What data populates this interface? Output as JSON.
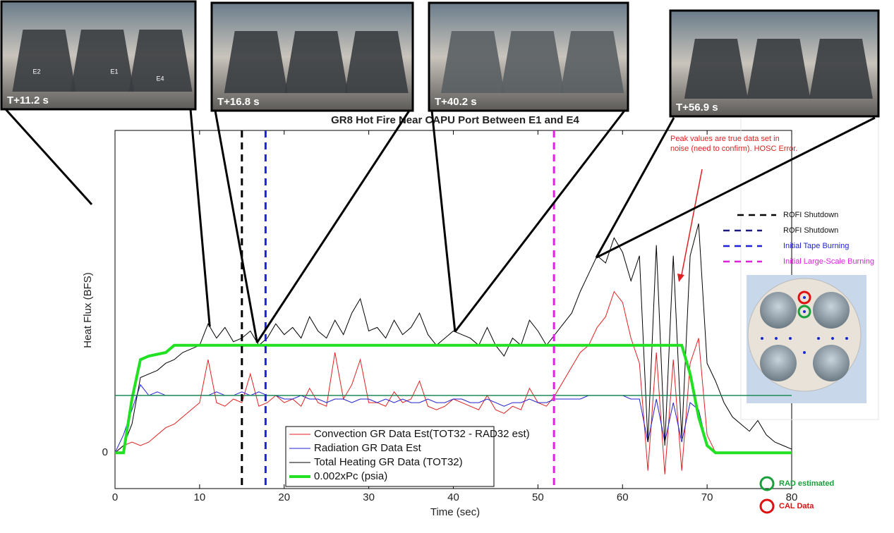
{
  "chart_data": {
    "type": "line",
    "title": "GR8 Hot Fire Near CAPU Port Between E1 and E4",
    "xlabel": "Time (sec)",
    "ylabel": "Heat Flux (BFS)",
    "x": [
      0,
      1,
      2,
      3,
      4,
      5,
      6,
      7,
      8,
      9,
      10,
      11,
      12,
      13,
      14,
      15,
      16,
      17,
      18,
      19,
      20,
      21,
      22,
      23,
      24,
      25,
      26,
      27,
      28,
      29,
      30,
      31,
      32,
      33,
      34,
      35,
      36,
      37,
      38,
      39,
      40,
      41,
      42,
      43,
      44,
      45,
      46,
      47,
      48,
      49,
      50,
      51,
      52,
      53,
      54,
      55,
      56,
      57,
      58,
      59,
      60,
      61,
      62,
      63,
      64,
      65,
      66,
      67,
      68,
      69,
      70,
      71,
      72,
      73,
      74,
      75,
      76,
      77,
      78,
      79,
      80
    ],
    "xlim": [
      0,
      80
    ],
    "ylim": [
      -1,
      9
    ],
    "xticks": [
      0,
      10,
      20,
      30,
      40,
      50,
      60,
      70,
      80
    ],
    "yticks": [
      0
    ],
    "series": [
      {
        "name": "Convection GR Data Est(TOT32 - RAD32 est)",
        "color": "#e02020",
        "width": 1,
        "values": [
          0,
          0.2,
          0.3,
          0.2,
          0.3,
          0.5,
          0.7,
          0.8,
          1.0,
          1.2,
          1.4,
          2.6,
          1.4,
          1.3,
          1.5,
          1.4,
          2.2,
          1.3,
          1.4,
          1.6,
          1.4,
          1.5,
          1.3,
          1.8,
          1.4,
          1.3,
          2.8,
          1.5,
          1.9,
          2.6,
          1.4,
          1.4,
          1.3,
          1.7,
          1.4,
          1.5,
          2.0,
          1.3,
          1.2,
          1.3,
          1.5,
          1.4,
          1.3,
          1.2,
          1.6,
          1.2,
          1.1,
          1.3,
          1.2,
          1.8,
          1.4,
          1.3,
          1.6,
          2.0,
          2.4,
          2.8,
          3.0,
          3.5,
          3.8,
          4.5,
          4.2,
          3.2,
          2.5,
          -0.5,
          2.8,
          -0.6,
          2.6,
          -0.5,
          2.5,
          3.2,
          0.5,
          0,
          0,
          0,
          0,
          0,
          0,
          0,
          0,
          0,
          0
        ]
      },
      {
        "name": "Radiation GR Data Est",
        "color": "#2020d0",
        "width": 1,
        "values": [
          0,
          0.5,
          1.2,
          1.9,
          1.6,
          1.7,
          1.6,
          1.6,
          1.6,
          1.6,
          1.6,
          1.6,
          1.7,
          1.6,
          1.6,
          1.7,
          1.6,
          1.7,
          1.6,
          1.6,
          1.5,
          1.5,
          1.6,
          1.5,
          1.5,
          1.4,
          1.5,
          1.5,
          1.4,
          1.5,
          1.5,
          1.4,
          1.5,
          1.4,
          1.5,
          1.4,
          1.4,
          1.5,
          1.4,
          1.4,
          1.5,
          1.5,
          1.4,
          1.4,
          1.5,
          1.4,
          1.3,
          1.4,
          1.4,
          1.5,
          1.4,
          1.4,
          1.5,
          1.5,
          1.5,
          1.5,
          1.6,
          1.6,
          1.6,
          1.6,
          1.6,
          1.5,
          1.5,
          0.3,
          1.5,
          0.3,
          1.4,
          0.3,
          1.4,
          1.2,
          0.2,
          0,
          0,
          0,
          0,
          0,
          0,
          0,
          0,
          0,
          0
        ]
      },
      {
        "name": "Total Heating GR Data (TOT32)",
        "color": "#000000",
        "width": 1,
        "values": [
          0,
          0.2,
          0.8,
          2.1,
          2.2,
          2.3,
          2.5,
          2.6,
          2.8,
          2.9,
          3.0,
          3.6,
          3.2,
          3.5,
          3.1,
          3.2,
          3.4,
          3.0,
          3.2,
          3.6,
          3.3,
          3.5,
          3.2,
          3.8,
          3.4,
          3.2,
          3.7,
          3.3,
          3.9,
          4.3,
          3.4,
          3.5,
          3.2,
          3.7,
          3.3,
          3.5,
          3.9,
          3.3,
          3.0,
          3.2,
          3.4,
          3.3,
          3.2,
          3.0,
          3.5,
          3.0,
          2.7,
          3.2,
          3.0,
          3.7,
          3.4,
          3.0,
          3.3,
          3.6,
          3.9,
          4.5,
          5.0,
          5.5,
          5.3,
          6.0,
          5.6,
          4.8,
          5.5,
          0.3,
          5.8,
          0.2,
          5.5,
          0.4,
          5.5,
          6.4,
          2.5,
          2.0,
          1.4,
          1.0,
          0.8,
          0.6,
          0.9,
          0.5,
          0.3,
          0.2,
          0.1
        ]
      },
      {
        "name": "0.002xPc (psia)",
        "color": "#22e022",
        "width": 4,
        "values": [
          0,
          0,
          1.5,
          2.6,
          2.7,
          2.75,
          2.8,
          3,
          3,
          3,
          3,
          3,
          3,
          3,
          3,
          3,
          3,
          3,
          3,
          3,
          3,
          3,
          3,
          3,
          3,
          3,
          3,
          3,
          3,
          3,
          3,
          3,
          3,
          3,
          3,
          3,
          3,
          3,
          3,
          3,
          3,
          3,
          3,
          3,
          3,
          3,
          3,
          3,
          3,
          3,
          3,
          3,
          3,
          3,
          3,
          3,
          3,
          3,
          3,
          3,
          3,
          3,
          3,
          3,
          3,
          3,
          3,
          3,
          2.2,
          1.0,
          0.2,
          0,
          0,
          0,
          0,
          0,
          0,
          0,
          0,
          0,
          0
        ]
      }
    ],
    "vlines": [
      {
        "x": 15,
        "color": "#000000"
      },
      {
        "x": 17.8,
        "color": "#2020e0"
      },
      {
        "x": 51.9,
        "color": "#e020e0"
      }
    ],
    "hline": {
      "y": 1.6,
      "color": "#1e8a5a"
    },
    "annotation": "Peak values are true data set in noise (need to confirm). HOSC Error."
  },
  "photos": [
    {
      "label": "T+11.2 s",
      "time": 11.2,
      "engines": [
        "E2",
        "E1",
        "E4"
      ]
    },
    {
      "label": "T+16.8 s",
      "time": 16.8
    },
    {
      "label": "T+40.2 s",
      "time": 40.2
    },
    {
      "label": "T+56.9 s",
      "time": 56.9
    }
  ],
  "event_legend": [
    {
      "label": "ROFI Shutdown",
      "color": "#000000"
    },
    {
      "label": "ROFI Shutdown",
      "color": "#1a1a80"
    },
    {
      "label": "Initial Tape Burning",
      "color": "#2020e0"
    },
    {
      "label": "Initial Large-Scale Burning",
      "color": "#e020e0"
    }
  ],
  "diagram_legend": [
    {
      "label": "RAD estimated",
      "color": "#1aa03a"
    },
    {
      "label": "CAL Data",
      "color": "#e01010"
    }
  ]
}
